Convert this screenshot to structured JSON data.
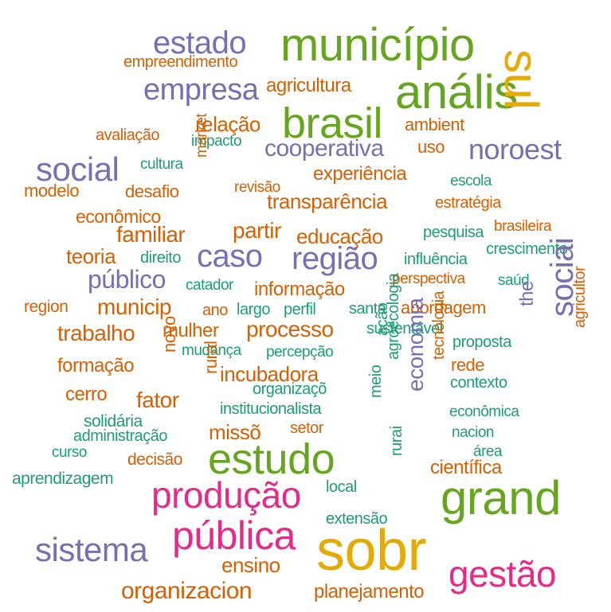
{
  "palette": {
    "teal": "#1b9e77",
    "orange": "#d95f02",
    "purple": "#7570b3",
    "magenta": "#e7298a",
    "green": "#66a61e",
    "gold": "#e6ab02"
  },
  "words": [
    {
      "text": "município",
      "color": "green"
    },
    {
      "text": "estado",
      "color": "purple"
    },
    {
      "text": "empreendimento",
      "color": "orange"
    },
    {
      "text": "anális",
      "color": "green"
    },
    {
      "text": "sul",
      "color": "gold"
    },
    {
      "text": "empresa",
      "color": "purple"
    },
    {
      "text": "agricultura",
      "color": "orange"
    },
    {
      "text": "brasil",
      "color": "green"
    },
    {
      "text": "relação",
      "color": "orange"
    },
    {
      "text": "ambient",
      "color": "orange"
    },
    {
      "text": "avaliação",
      "color": "orange"
    },
    {
      "text": "impacto",
      "color": "teal"
    },
    {
      "text": "cooperativa",
      "color": "purple"
    },
    {
      "text": "uso",
      "color": "orange"
    },
    {
      "text": "noroest",
      "color": "purple"
    },
    {
      "text": "social",
      "color": "purple"
    },
    {
      "text": "cultura",
      "color": "teal"
    },
    {
      "text": "market",
      "color": "orange"
    },
    {
      "text": "experiência",
      "color": "orange"
    },
    {
      "text": "escola",
      "color": "teal"
    },
    {
      "text": "modelo",
      "color": "orange"
    },
    {
      "text": "desafio",
      "color": "orange"
    },
    {
      "text": "revisão",
      "color": "orange"
    },
    {
      "text": "transparência",
      "color": "orange"
    },
    {
      "text": "estratégia",
      "color": "orange"
    },
    {
      "text": "econômico",
      "color": "orange"
    },
    {
      "text": "brasileira",
      "color": "orange"
    },
    {
      "text": "familiar",
      "color": "orange"
    },
    {
      "text": "partir",
      "color": "orange"
    },
    {
      "text": "educação",
      "color": "orange"
    },
    {
      "text": "pesquisa",
      "color": "teal"
    },
    {
      "text": "crescimento",
      "color": "teal"
    },
    {
      "text": "teoria",
      "color": "orange"
    },
    {
      "text": "direito",
      "color": "teal"
    },
    {
      "text": "caso",
      "color": "purple"
    },
    {
      "text": "região",
      "color": "purple"
    },
    {
      "text": "influência",
      "color": "teal"
    },
    {
      "text": "público",
      "color": "purple"
    },
    {
      "text": "perspectiva",
      "color": "orange"
    },
    {
      "text": "saúd",
      "color": "teal"
    },
    {
      "text": "catador",
      "color": "teal"
    },
    {
      "text": "informação",
      "color": "orange"
    },
    {
      "text": "region",
      "color": "orange"
    },
    {
      "text": "municip",
      "color": "orange"
    },
    {
      "text": "ano",
      "color": "orange"
    },
    {
      "text": "largo",
      "color": "teal"
    },
    {
      "text": "perfil",
      "color": "teal"
    },
    {
      "text": "santa",
      "color": "teal"
    },
    {
      "text": "abordagem",
      "color": "orange"
    },
    {
      "text": "the",
      "color": "purple"
    },
    {
      "text": "sociai",
      "color": "purple"
    },
    {
      "text": "agricultor",
      "color": "orange"
    },
    {
      "text": "trabalho",
      "color": "orange"
    },
    {
      "text": "mulher",
      "color": "orange"
    },
    {
      "text": "processo",
      "color": "orange"
    },
    {
      "text": "sustentável",
      "color": "teal"
    },
    {
      "text": "ação",
      "color": "teal"
    },
    {
      "text": "proposta",
      "color": "teal"
    },
    {
      "text": "novo",
      "color": "orange"
    },
    {
      "text": "mudança",
      "color": "teal"
    },
    {
      "text": "percepção",
      "color": "teal"
    },
    {
      "text": "agroecologia",
      "color": "teal"
    },
    {
      "text": "tecnologia",
      "color": "orange"
    },
    {
      "text": "rede",
      "color": "orange"
    },
    {
      "text": "formação",
      "color": "orange"
    },
    {
      "text": "rural",
      "color": "orange"
    },
    {
      "text": "incubadora",
      "color": "orange"
    },
    {
      "text": "economia",
      "color": "purple"
    },
    {
      "text": "contexto",
      "color": "teal"
    },
    {
      "text": "cerro",
      "color": "orange"
    },
    {
      "text": "fator",
      "color": "orange"
    },
    {
      "text": "organizaçõ",
      "color": "teal"
    },
    {
      "text": "meio",
      "color": "teal"
    },
    {
      "text": "institucionalista",
      "color": "teal"
    },
    {
      "text": "econômica",
      "color": "teal"
    },
    {
      "text": "solidária",
      "color": "teal"
    },
    {
      "text": "missõ",
      "color": "orange"
    },
    {
      "text": "setor",
      "color": "orange"
    },
    {
      "text": "nacion",
      "color": "teal"
    },
    {
      "text": "administração",
      "color": "teal"
    },
    {
      "text": "curso",
      "color": "teal"
    },
    {
      "text": "decisão",
      "color": "orange"
    },
    {
      "text": "estudo",
      "color": "green"
    },
    {
      "text": "área",
      "color": "teal"
    },
    {
      "text": "rurai",
      "color": "teal"
    },
    {
      "text": "científica",
      "color": "orange"
    },
    {
      "text": "aprendizagem",
      "color": "teal"
    },
    {
      "text": "local",
      "color": "teal"
    },
    {
      "text": "produção",
      "color": "magenta"
    },
    {
      "text": "grand",
      "color": "green"
    },
    {
      "text": "extensão",
      "color": "teal"
    },
    {
      "text": "pública",
      "color": "magenta"
    },
    {
      "text": "sistema",
      "color": "purple"
    },
    {
      "text": "sobr",
      "color": "gold"
    },
    {
      "text": "ensino",
      "color": "orange"
    },
    {
      "text": "gestão",
      "color": "magenta"
    },
    {
      "text": "organizacion",
      "color": "orange"
    },
    {
      "text": "planejamento",
      "color": "orange"
    }
  ]
}
